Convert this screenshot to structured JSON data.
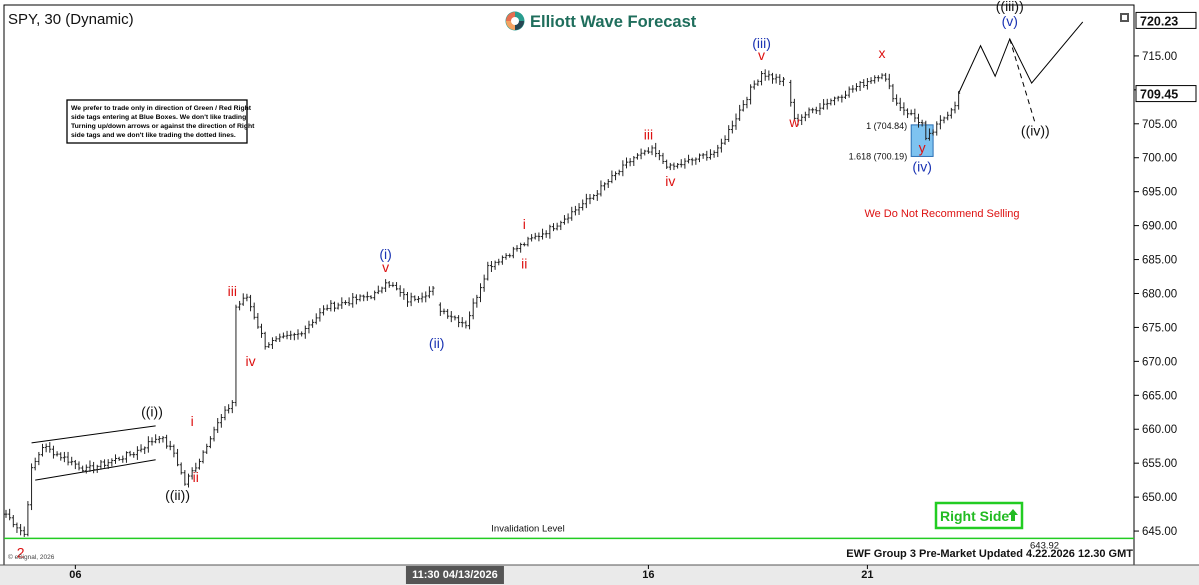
{
  "symbol_label": "SPY, 30 (Dynamic)",
  "brand": {
    "name": "Elliott Wave Forecast",
    "logo_icon": "ewf-logo-icon"
  },
  "notice": "We prefer to trade only in direction of Green / Red Right side tags entering at Blue Boxes. We don't like trading Turning up/down arrows or against the direction of Right side tags and we don't like trading the dotted lines.",
  "notice_lines": [
    "We prefer to trade only in direction of Green / Red Right",
    "side tags entering at Blue Boxes. We don't like trading",
    "Turning up/down arrows or against the direction of Right",
    "side tags and we don't like trading the dotted lines."
  ],
  "recommendation": "We Do Not Recommend Selling",
  "right_side_label": "Right Side",
  "invalidation_label": "Invalidation Level",
  "invalidation_value": "643.92",
  "footer": "EWF Group 3 Pre-Market Updated 4.22.2026 12.30 GMT",
  "copyright": "© eSignal, 2026",
  "crosshair_time": "11:30 04/13/2026",
  "colors": {
    "blue_wave": "#1a33b3",
    "red_wave": "#dd1111",
    "green_line": "#22cc22",
    "box_fill": "#7ec3f0",
    "box_stroke": "#2a6fb5"
  },
  "chart_data": {
    "type": "ohlc",
    "ylim": [
      640,
      722.5
    ],
    "y_ticks": [
      "645.00",
      "650.00",
      "655.00",
      "660.00",
      "665.00",
      "670.00",
      "675.00",
      "680.00",
      "685.00",
      "690.00",
      "695.00",
      "700.00",
      "705.00",
      "710.00",
      "715.00"
    ],
    "price_tags": [
      {
        "label": "720.23",
        "value": 720.23
      },
      {
        "label": "709.45",
        "value": 709.45
      }
    ],
    "x_ticks": [
      {
        "label": "06",
        "idx": 19
      },
      {
        "label": "16",
        "idx": 176
      },
      {
        "label": "21",
        "idx": 236
      }
    ],
    "crosshair_idx": 123,
    "invalidation_level": 643.92,
    "blue_box": {
      "fib_1": "1 (704.84)",
      "fib_1618": "1.618 (700.19)",
      "top": 704.84,
      "bottom": 700.19,
      "idx_start": 248,
      "idx_end": 254
    },
    "anchors": [
      [
        0,
        647.5
      ],
      [
        5,
        644.5
      ],
      [
        7,
        654
      ],
      [
        10,
        657.5
      ],
      [
        22,
        654
      ],
      [
        35,
        656.5
      ],
      [
        42,
        659
      ],
      [
        46,
        656.5
      ],
      [
        49,
        652
      ],
      [
        53,
        655.5
      ],
      [
        56,
        659
      ],
      [
        57,
        660
      ],
      [
        62,
        664
      ],
      [
        63,
        678
      ],
      [
        66,
        679.5
      ],
      [
        71,
        672.5
      ],
      [
        80,
        674
      ],
      [
        88,
        678
      ],
      [
        102,
        680
      ],
      [
        104,
        682
      ],
      [
        110,
        679
      ],
      [
        117,
        680.5
      ],
      [
        118,
        678
      ],
      [
        126,
        675.5
      ],
      [
        132,
        684
      ],
      [
        138,
        686
      ],
      [
        144,
        688
      ],
      [
        149,
        689.5
      ],
      [
        160,
        694
      ],
      [
        172,
        700
      ],
      [
        177,
        701
      ],
      [
        182,
        698.5
      ],
      [
        195,
        701
      ],
      [
        204,
        710
      ],
      [
        207,
        712.5
      ],
      [
        214,
        711
      ],
      [
        216,
        705.5
      ],
      [
        226,
        708.5
      ],
      [
        235,
        711
      ],
      [
        240,
        712.5
      ],
      [
        244,
        708
      ],
      [
        251,
        705
      ],
      [
        252,
        702.5
      ],
      [
        260,
        708
      ],
      [
        261,
        709.5
      ]
    ],
    "breaks": [
      118,
      214
    ],
    "channel": {
      "upper": [
        [
          7,
          658
        ],
        [
          41,
          660.5
        ]
      ],
      "lower": [
        [
          8,
          652.5
        ],
        [
          41,
          655.5
        ]
      ]
    },
    "projection_solid": [
      [
        261,
        709.5
      ],
      [
        267,
        716.5
      ],
      [
        271,
        712
      ],
      [
        275,
        717.5
      ],
      [
        281,
        711
      ],
      [
        295,
        720
      ]
    ],
    "projection_dashed": [
      [
        275,
        717.5
      ],
      [
        282,
        705
      ]
    ],
    "wave_labels": [
      {
        "text": "2",
        "color": "red",
        "idx": 4,
        "price": 641.1
      },
      {
        "text": "((i))",
        "color": "black",
        "idx": 40,
        "price": 661.9
      },
      {
        "text": "((ii))",
        "color": "black",
        "idx": 47,
        "price": 649.6
      },
      {
        "text": "i",
        "color": "red",
        "idx": 51,
        "price": 660.5
      },
      {
        "text": "ii",
        "color": "red",
        "idx": 52,
        "price": 652.2
      },
      {
        "text": "iii",
        "color": "red",
        "idx": 62,
        "price": 679.6
      },
      {
        "text": "iv",
        "color": "red",
        "idx": 67,
        "price": 669.3
      },
      {
        "text": "(i)",
        "color": "blue",
        "idx": 104,
        "price": 685.1
      },
      {
        "text": "v",
        "color": "red",
        "idx": 104,
        "price": 683.2
      },
      {
        "text": "(ii)",
        "color": "blue",
        "idx": 118,
        "price": 672.0
      },
      {
        "text": "i",
        "color": "red",
        "idx": 142,
        "price": 689.5
      },
      {
        "text": "ii",
        "color": "red",
        "idx": 142,
        "price": 683.7
      },
      {
        "text": "iii",
        "color": "red",
        "idx": 176,
        "price": 702.7
      },
      {
        "text": "iv",
        "color": "red",
        "idx": 182,
        "price": 695.8
      },
      {
        "text": "(iii)",
        "color": "blue",
        "idx": 207,
        "price": 716.2
      },
      {
        "text": "v",
        "color": "red",
        "idx": 207,
        "price": 714.4
      },
      {
        "text": "w",
        "color": "red",
        "idx": 216,
        "price": 704.5
      },
      {
        "text": "x",
        "color": "red",
        "idx": 240,
        "price": 714.7
      },
      {
        "text": "y",
        "color": "red",
        "idx": 251,
        "price": 700.8
      },
      {
        "text": "(iv)",
        "color": "blue",
        "idx": 251,
        "price": 698.0
      },
      {
        "text": "((iii))",
        "color": "black",
        "idx": 275,
        "price": 721.6
      },
      {
        "text": "(v)",
        "color": "blue",
        "idx": 275,
        "price": 719.4
      },
      {
        "text": "((iv))",
        "color": "black",
        "idx": 282,
        "price": 703.3
      }
    ]
  }
}
